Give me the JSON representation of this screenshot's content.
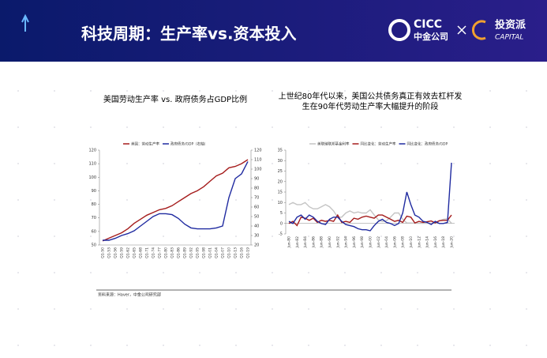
{
  "header": {
    "title": "科技周期：生产率vs.资本投入",
    "logo1_main": "CICC",
    "logo1_sub": "中金公司",
    "logo2_main": "投资派",
    "logo2_sub": "CAPITAL"
  },
  "source": "资料来源：Haver，中金公司研究部",
  "chart_data": [
    {
      "type": "line",
      "title": [
        "美国劳动生产率 vs. 政府债务占GDP比例"
      ],
      "categories": [
        "Q1-50",
        "Q1-53",
        "Q1-56",
        "Q1-59",
        "Q1-62",
        "Q1-65",
        "Q1-68",
        "Q1-71",
        "Q1-74",
        "Q1-77",
        "Q1-80",
        "Q1-83",
        "Q1-86",
        "Q1-89",
        "Q1-92",
        "Q1-95",
        "Q1-98",
        "Q1-01",
        "Q1-04",
        "Q1-07",
        "Q1-10",
        "Q1-13",
        "Q1-16",
        "Q1-19"
      ],
      "series": [
        {
          "name": "美国：劳动生产率",
          "color": "#a51c1c",
          "values": [
            53,
            55,
            57,
            59,
            62,
            66,
            69,
            72,
            74,
            76,
            77,
            79,
            82,
            85,
            88,
            90,
            93,
            97,
            101,
            103,
            107,
            108,
            110,
            113
          ]
        },
        {
          "name": "政府债务/GDP（右轴）",
          "color": "#1f2aa0",
          "axis": "y2",
          "values": [
            25,
            25,
            27,
            30,
            32,
            35,
            40,
            45,
            50,
            53,
            53,
            52,
            48,
            42,
            38,
            37,
            37,
            37,
            38,
            40,
            70,
            90,
            95,
            108
          ]
        }
      ],
      "ylim": [
        50,
        120
      ],
      "yticks": [
        50,
        60,
        70,
        80,
        90,
        100,
        110,
        120
      ],
      "y2lim": [
        20,
        120
      ],
      "y2ticks": [
        20,
        30,
        40,
        50,
        60,
        70,
        80,
        90,
        100,
        110,
        120
      ]
    },
    {
      "type": "line",
      "title": [
        "上世纪80年代以来，美国公共债务真正有效去杠杆发",
        "生在90年代劳动生产率大幅提升的阶段"
      ],
      "categories": [
        "Jun-80",
        null,
        "Jun-82",
        null,
        "Jun-84",
        null,
        "Jun-86",
        null,
        "Jun-88",
        null,
        "Jun-90",
        null,
        "Jun-92",
        null,
        "Jun-94",
        null,
        "Jun-96",
        null,
        "Jun-98",
        null,
        "Jun-00",
        null,
        "Jun-02",
        null,
        "Jun-04",
        null,
        "Jun-06",
        null,
        "Jun-08",
        null,
        "Jun-10",
        null,
        "Jun-12",
        null,
        "Jun-14",
        null,
        "Jun-16",
        null,
        "Jun-18",
        null,
        "Jun-20"
      ],
      "series": [
        {
          "name": "美联储联邦基金利率",
          "color": "#c4c4c4",
          "values": [
            9,
            10,
            9,
            9,
            10,
            8,
            7,
            7,
            8,
            9,
            8,
            6,
            3,
            3,
            5,
            6,
            5,
            5.5,
            5,
            5,
            6.5,
            4,
            1.7,
            1,
            1.3,
            3,
            5,
            5,
            2,
            0.2,
            0.2,
            0.1,
            0.1,
            0.1,
            0.1,
            0.1,
            0.4,
            1.2,
            2,
            2.2,
            0.1
          ]
        },
        {
          "name": "同比变化：劳动生产率",
          "color": "#a51c1c",
          "values": [
            0,
            1,
            -1,
            3,
            2.5,
            1.5,
            2.5,
            0.5,
            1.5,
            1,
            1.5,
            1,
            4,
            0.5,
            1,
            0.5,
            2.5,
            2,
            3,
            3.5,
            3,
            2.5,
            4,
            4,
            3,
            2,
            1,
            1.5,
            0.5,
            3.5,
            3,
            0.2,
            1,
            0.5,
            0.8,
            1.2,
            0.3,
            1.3,
            1.5,
            1.5,
            4
          ]
        },
        {
          "name": "同比变化：政府债务/GDP",
          "color": "#1f2aa0",
          "values": [
            1,
            0,
            3,
            4,
            2,
            4,
            3,
            1,
            0,
            -0.5,
            2,
            3,
            3,
            1,
            -0.5,
            -1,
            -1.5,
            -2.5,
            -3,
            -3,
            -3.5,
            -1,
            1,
            2,
            0.5,
            0,
            -1,
            0,
            5,
            15,
            9,
            4,
            3,
            1,
            0.5,
            -0.5,
            1,
            0,
            0,
            0.5,
            29
          ]
        }
      ],
      "ylim": [
        -5,
        35
      ],
      "yticks": [
        -5,
        0,
        5,
        10,
        15,
        20,
        25,
        30,
        35
      ]
    }
  ]
}
